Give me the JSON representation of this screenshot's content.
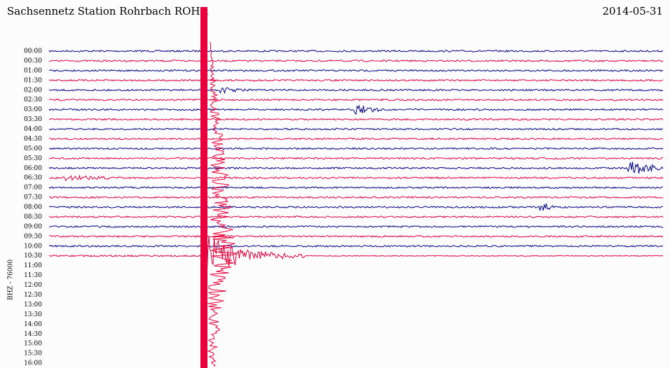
{
  "chart_data": {
    "type": "helicorder",
    "title": "Sachsennetz Station Rohrbach ROHR",
    "date": "2014-05-31",
    "y_label": "BHZ - 76000",
    "categories": [
      "00:00",
      "00:30",
      "01:00",
      "01:30",
      "02:00",
      "02:30",
      "03:00",
      "03:30",
      "04:00",
      "04:30",
      "05:00",
      "05:30",
      "06:00",
      "06:30",
      "07:00",
      "07:30",
      "08:00",
      "08:30",
      "09:00",
      "09:30",
      "10:00",
      "10:30",
      "11:00",
      "11:30",
      "12:00",
      "12:30",
      "13:00",
      "13:30",
      "14:00",
      "14:30",
      "15:00",
      "15:30",
      "16:00"
    ],
    "trace_colors": [
      "#00008b",
      "#e8003c",
      "#00008b",
      "#e8003c",
      "#00008b",
      "#e8003c",
      "#00008b",
      "#e8003c",
      "#00008b",
      "#e8003c",
      "#00008b",
      "#e8003c",
      "#00008b",
      "#e8003c",
      "#00008b",
      "#e8003c",
      "#00008b",
      "#e8003c",
      "#00008b",
      "#e8003c",
      "#00008b",
      "#e8003c"
    ]
  }
}
